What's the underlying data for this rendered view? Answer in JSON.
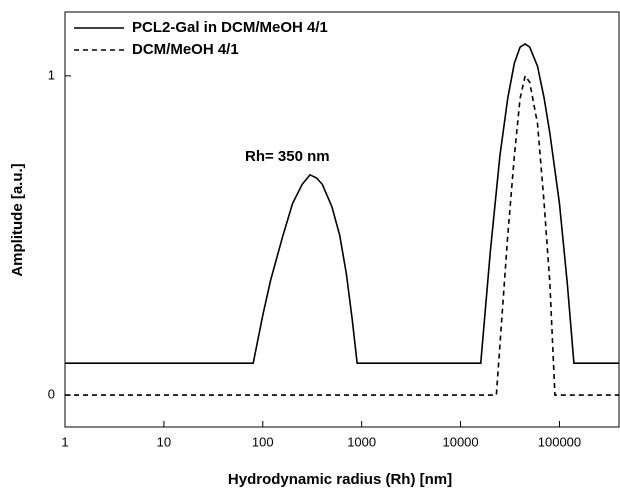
{
  "chart_data": {
    "type": "line",
    "x_label": "Hydrodynamic radius (Rh) [nm]",
    "y_label": "Amplitude [a.u.]",
    "annotation": "Rh= 350 nm",
    "x_log": true,
    "xlim": [
      1,
      400000
    ],
    "xticks": [
      1,
      10,
      100,
      1000,
      10000,
      100000
    ],
    "ylim": [
      -0.1,
      1.2
    ],
    "yticks": [
      0,
      1
    ],
    "legend": "top-left",
    "series": [
      {
        "name": "PCL2-Gal in DCM/MeOH 4/1",
        "color": "#000000",
        "dash": false,
        "x": [
          1,
          80,
          100,
          120,
          160,
          200,
          250,
          300,
          350,
          400,
          500,
          600,
          700,
          800,
          900,
          16000,
          20000,
          25000,
          30000,
          35000,
          40000,
          45000,
          50000,
          60000,
          70000,
          80000,
          100000,
          120000,
          140000,
          400000
        ],
        "values": [
          0.1,
          0.1,
          0.25,
          0.36,
          0.5,
          0.6,
          0.66,
          0.69,
          0.68,
          0.66,
          0.59,
          0.5,
          0.38,
          0.24,
          0.1,
          0.1,
          0.45,
          0.75,
          0.93,
          1.04,
          1.09,
          1.1,
          1.09,
          1.03,
          0.93,
          0.82,
          0.6,
          0.35,
          0.1,
          0.1
        ]
      },
      {
        "name": "DCM/MeOH 4/1",
        "color": "#000000",
        "dash": true,
        "x": [
          1,
          23000,
          30000,
          35000,
          40000,
          45000,
          50000,
          60000,
          70000,
          80000,
          90000,
          400000
        ],
        "values": [
          0,
          0,
          0.5,
          0.75,
          0.93,
          1.0,
          0.98,
          0.85,
          0.6,
          0.35,
          0,
          0
        ]
      }
    ]
  }
}
